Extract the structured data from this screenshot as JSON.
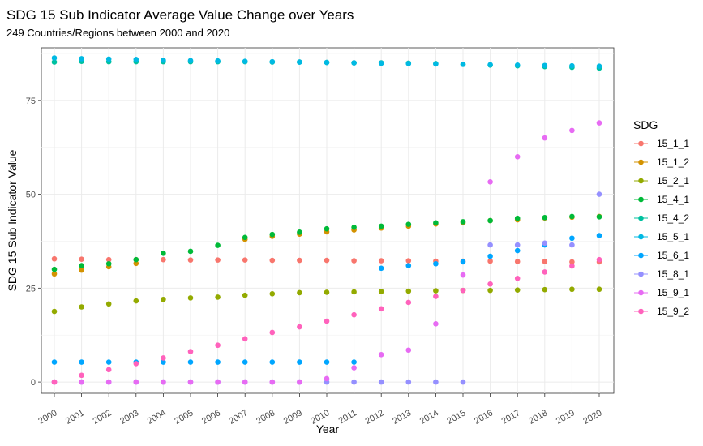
{
  "chart_data": {
    "type": "scatter",
    "title": "SDG 15 Sub Indicator Average Value Change over Years",
    "subtitle": "249 Countries/Regions between 2000 and 2020",
    "xlabel": "Year",
    "ylabel": "SDG 15 Sub Indicator Value",
    "x": [
      "2000",
      "2001",
      "2002",
      "2003",
      "2004",
      "2005",
      "2006",
      "2007",
      "2008",
      "2009",
      "2010",
      "2011",
      "2012",
      "2013",
      "2014",
      "2015",
      "2016",
      "2017",
      "2018",
      "2019",
      "2020"
    ],
    "ylim": [
      -3,
      89
    ],
    "yticks": [
      0,
      25,
      50,
      75
    ],
    "grid": true,
    "legend": {
      "title": "SDG",
      "position": "right"
    },
    "series": [
      {
        "name": "15_1_1",
        "color": "#F8766D",
        "values": [
          32.8,
          32.7,
          32.6,
          32.6,
          32.6,
          32.5,
          32.5,
          32.5,
          32.4,
          32.4,
          32.4,
          32.3,
          32.3,
          32.3,
          32.2,
          32.2,
          32.2,
          32.1,
          32.1,
          32.0,
          32.0
        ]
      },
      {
        "name": "15_1_2",
        "color": "#D39200",
        "values": [
          28.8,
          29.8,
          30.7,
          31.6,
          null,
          null,
          null,
          38.0,
          38.8,
          39.4,
          40.0,
          40.5,
          41.0,
          41.5,
          42.1,
          42.4,
          43.0,
          43.2,
          43.7,
          43.9,
          44.1
        ]
      },
      {
        "name": "15_2_1",
        "color": "#93AA00",
        "values": [
          18.8,
          20.0,
          20.8,
          21.6,
          22.0,
          22.4,
          22.6,
          23.1,
          23.5,
          23.8,
          23.9,
          24.0,
          24.1,
          24.2,
          24.3,
          24.4,
          24.4,
          24.5,
          24.6,
          24.7,
          24.7
        ]
      },
      {
        "name": "15_4_1",
        "color": "#00BA38",
        "values": [
          30.0,
          31.0,
          31.5,
          32.6,
          34.3,
          34.8,
          36.4,
          38.5,
          39.3,
          39.9,
          40.8,
          41.2,
          41.5,
          42.0,
          42.4,
          42.7,
          43.0,
          43.6,
          43.8,
          44.1,
          44.0
        ]
      },
      {
        "name": "15_4_2",
        "color": "#00C19F",
        "values": [
          85.2,
          85.4,
          85.3,
          85.3,
          85.3,
          85.3,
          85.3,
          85.3,
          85.2,
          85.2,
          85.1,
          85.0,
          85.0,
          84.9,
          84.8,
          84.6,
          84.4,
          84.2,
          84.0,
          83.8,
          83.6
        ]
      },
      {
        "name": "15_5_1",
        "color": "#00B9E3",
        "values": [
          86.3,
          86.1,
          86.0,
          85.9,
          85.7,
          85.6,
          85.5,
          85.4,
          85.3,
          85.2,
          85.1,
          85.0,
          84.9,
          84.8,
          84.7,
          84.6,
          84.5,
          84.4,
          84.3,
          84.2,
          84.1
        ]
      },
      {
        "name": "15_6_1",
        "color": "#00A6FF",
        "values": [
          5.3,
          5.3,
          5.3,
          5.3,
          5.3,
          5.3,
          5.3,
          5.3,
          5.3,
          5.3,
          5.3,
          5.3,
          30.3,
          31.0,
          31.5,
          32.0,
          33.5,
          35.0,
          36.5,
          38.3,
          39.0
        ]
      },
      {
        "name": "15_8_1",
        "color": "#9590FF",
        "values": [
          0.0,
          0.0,
          0.0,
          0.0,
          0.0,
          0.0,
          0.0,
          0.0,
          0.0,
          0.0,
          0.0,
          0.0,
          0.0,
          0.0,
          0.0,
          0.0,
          36.5,
          36.5,
          37.0,
          36.5,
          50.0
        ]
      },
      {
        "name": "15_9_1",
        "color": "#E76BF3",
        "values": [
          0.0,
          0.0,
          0.0,
          0.0,
          0.0,
          0.0,
          0.0,
          0.0,
          0.0,
          0.0,
          0.9,
          3.8,
          7.3,
          8.5,
          15.5,
          28.5,
          53.3,
          60.0,
          65.0,
          67.0,
          69.0
        ]
      },
      {
        "name": "15_9_2",
        "color": "#FF62BC",
        "values": [
          0.0,
          1.8,
          3.3,
          4.9,
          6.4,
          8.1,
          9.8,
          11.5,
          13.2,
          14.7,
          16.2,
          17.9,
          19.5,
          21.2,
          22.8,
          24.4,
          26.1,
          27.6,
          29.3,
          30.9,
          32.6
        ]
      }
    ]
  }
}
